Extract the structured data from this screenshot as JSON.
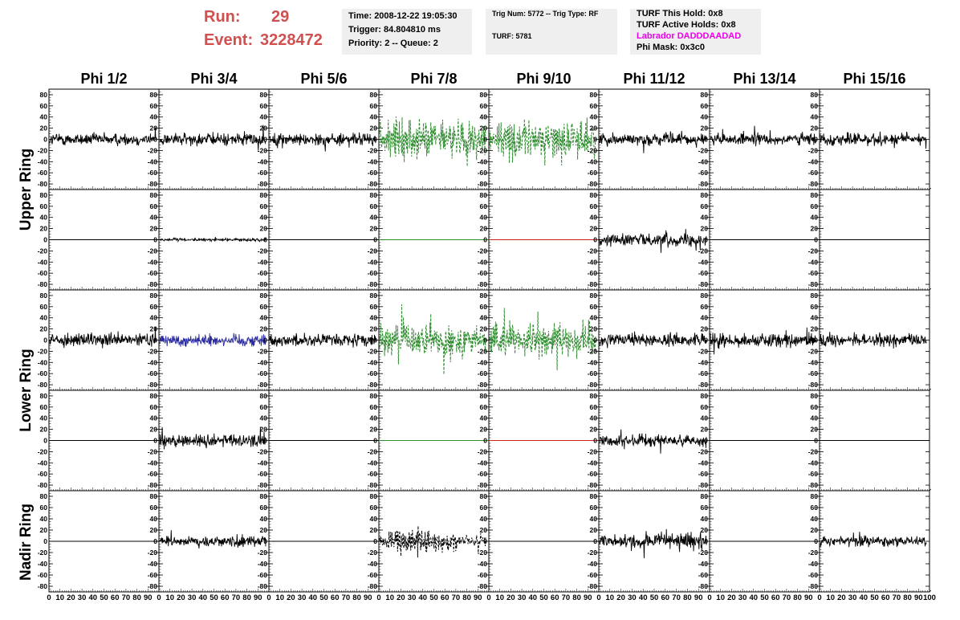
{
  "header": {
    "run_label": "Run:",
    "run_value": "29",
    "event_label": "Event:",
    "event_value": "3228472",
    "time_box": {
      "time": "Time: 2008-12-22 19:05:30",
      "trigger": "Trigger: 84.804810 ms",
      "priority": "Priority: 2 -- Queue: 2"
    },
    "trig_box": {
      "trig": "Trig Num: 5772 -- Trig Type: RF",
      "turf": "TURF: 5781"
    },
    "turf_box": {
      "this_hold": "TURF This Hold: 0x8",
      "active_holds": "TURF Active Holds: 0x8",
      "labrador": "Labrador DADDDAADAD",
      "phi_mask": "Phi Mask: 0x3c0"
    }
  },
  "colors": {
    "run_event": "#d05050",
    "labrador": "#ee00ee",
    "box_bg": "#efefef",
    "trace_black": "#000000",
    "trace_green": "#2e8b2e",
    "trace_blue": "#2b2ba0",
    "trace_red": "#cc2020"
  },
  "chart_data": {
    "type": "line",
    "column_titles": [
      "Phi 1/2",
      "Phi 3/4",
      "Phi 5/6",
      "Phi 7/8",
      "Phi 9/10",
      "Phi 11/12",
      "Phi 13/14",
      "Phi 15/16"
    ],
    "ring_labels": [
      "Upper Ring",
      "Lower Ring",
      "Nadir Ring"
    ],
    "ylim": [
      -90,
      90
    ],
    "y_ticks": [
      80,
      60,
      40,
      20,
      0,
      -20,
      -40,
      -60,
      -80
    ],
    "x_ticks": [
      0,
      10,
      20,
      30,
      40,
      50,
      60,
      70,
      80,
      90,
      100
    ],
    "xlim": [
      0,
      100
    ],
    "rows": [
      [
        {
          "style": "black",
          "amp": 14
        },
        {
          "style": "black",
          "amp": 14
        },
        {
          "style": "black",
          "amp": 14
        },
        {
          "style": "green",
          "amp": 42
        },
        {
          "style": "green",
          "amp": 42
        },
        {
          "style": "black",
          "amp": 13
        },
        {
          "style": "black",
          "amp": 13
        },
        {
          "style": "black",
          "amp": 14
        }
      ],
      [
        {
          "style": "none",
          "amp": 0
        },
        {
          "style": "black",
          "amp": 3
        },
        {
          "style": "none",
          "amp": 0
        },
        {
          "style": "green-flat",
          "amp": 0
        },
        {
          "style": "red-flat",
          "amp": 0
        },
        {
          "style": "black",
          "amp": 14
        },
        {
          "style": "none",
          "amp": 0
        },
        {
          "style": "none",
          "amp": 0
        }
      ],
      [
        {
          "style": "black",
          "amp": 14
        },
        {
          "style": "blue",
          "amp": 14
        },
        {
          "style": "black",
          "amp": 14
        },
        {
          "style": "green",
          "amp": 34
        },
        {
          "style": "green",
          "amp": 36
        },
        {
          "style": "black",
          "amp": 14
        },
        {
          "style": "black",
          "amp": 15
        },
        {
          "style": "black",
          "amp": 14
        }
      ],
      [
        {
          "style": "none",
          "amp": 0
        },
        {
          "style": "black",
          "amp": 15
        },
        {
          "style": "none",
          "amp": 0
        },
        {
          "style": "green-flat",
          "amp": 0
        },
        {
          "style": "red-flat",
          "amp": 0
        },
        {
          "style": "black",
          "amp": 14
        },
        {
          "style": "none",
          "amp": 0
        },
        {
          "style": "none",
          "amp": 0
        }
      ],
      [
        {
          "style": "none",
          "amp": 0
        },
        {
          "style": "black",
          "amp": 12
        },
        {
          "style": "none",
          "amp": 0
        },
        {
          "style": "dashed-black",
          "amp": 25
        },
        {
          "style": "none",
          "amp": 0
        },
        {
          "style": "black",
          "amp": 17
        },
        {
          "style": "none",
          "amp": 0
        },
        {
          "style": "black",
          "amp": 12
        }
      ]
    ]
  }
}
